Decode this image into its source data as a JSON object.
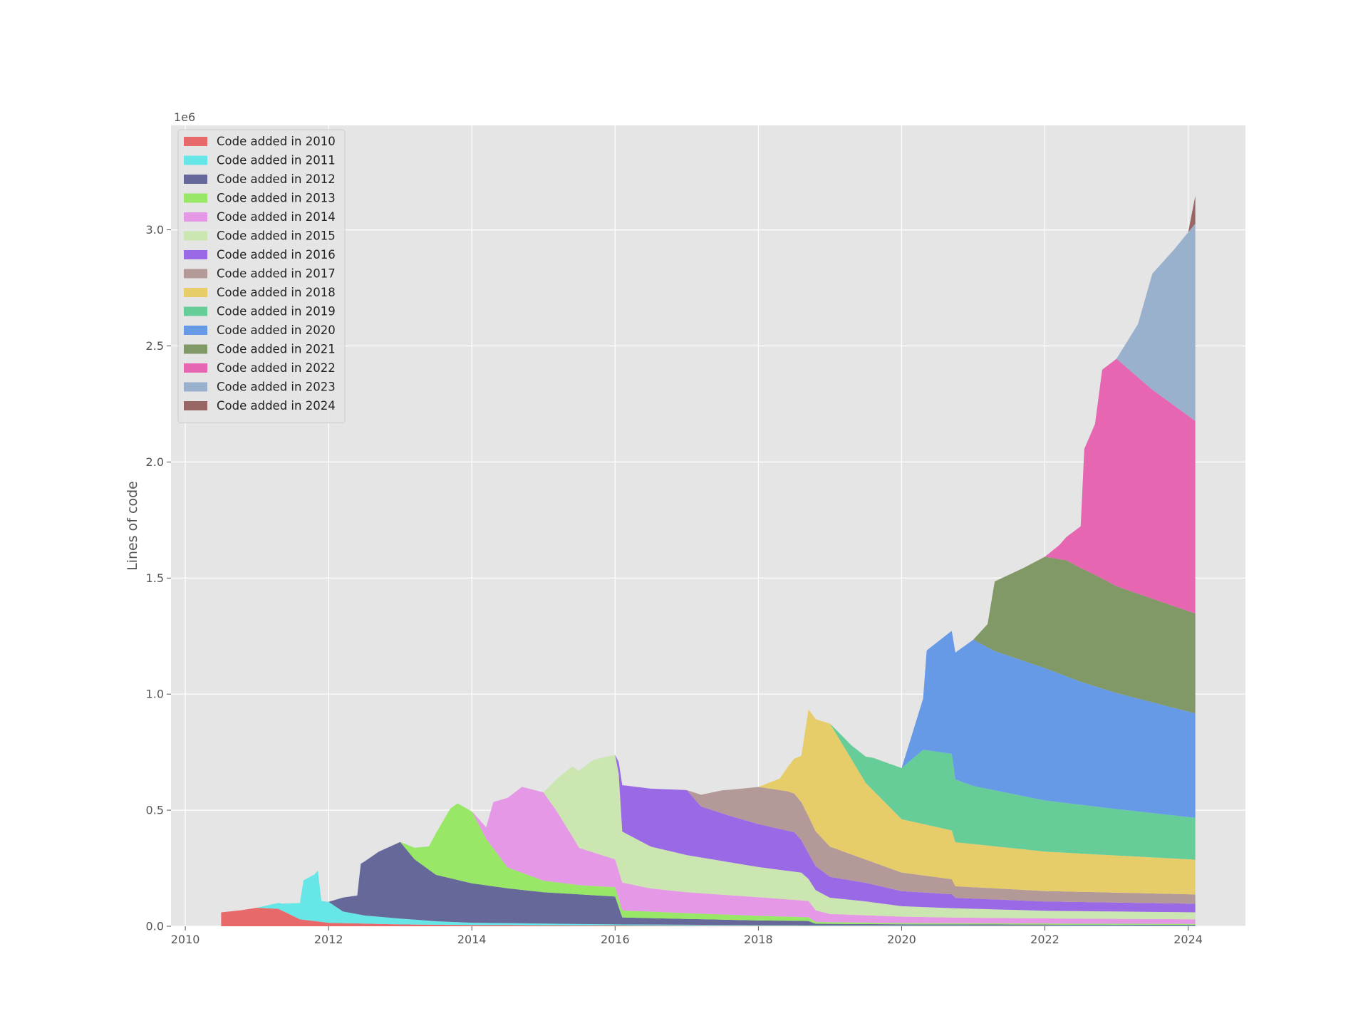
{
  "chart_data": {
    "type": "area",
    "title": "",
    "xlabel": "",
    "ylabel": "Lines of code",
    "y_offset_label": "1e6",
    "xlim": [
      2009.8,
      2024.8
    ],
    "ylim": [
      0,
      3.45
    ],
    "x_ticks": [
      2010,
      2012,
      2014,
      2016,
      2018,
      2020,
      2022,
      2024
    ],
    "x_tick_labels": [
      "2010",
      "2012",
      "2014",
      "2016",
      "2018",
      "2020",
      "2022",
      "2024"
    ],
    "y_ticks": [
      0,
      0.5,
      1.0,
      1.5,
      2.0,
      2.5,
      3.0
    ],
    "y_tick_labels": [
      "0.0",
      "0.5",
      "1.0",
      "1.5",
      "2.0",
      "2.5",
      "3.0"
    ],
    "grid": true,
    "stacked": true,
    "legend_position": "top-left",
    "unit_multiplier": 1000000,
    "series": [
      {
        "name": "Code added in 2010",
        "color": "#e8696a",
        "points": [
          [
            2010.5,
            0.06
          ],
          [
            2010.8,
            0.07
          ],
          [
            2011.0,
            0.08
          ],
          [
            2011.3,
            0.075
          ],
          [
            2011.6,
            0.03
          ],
          [
            2012.0,
            0.015
          ],
          [
            2013.0,
            0.008
          ],
          [
            2014.0,
            0.005
          ],
          [
            2016.0,
            0.003
          ],
          [
            2018.0,
            0.002
          ],
          [
            2024.1,
            0.001
          ]
        ]
      },
      {
        "name": "Code added in 2011",
        "color": "#66e6e6",
        "points": [
          [
            2011.0,
            0.0
          ],
          [
            2011.35,
            0.03
          ],
          [
            2011.6,
            0.07
          ],
          [
            2011.65,
            0.17
          ],
          [
            2011.8,
            0.2
          ],
          [
            2011.85,
            0.22
          ],
          [
            2011.9,
            0.09
          ],
          [
            2012.0,
            0.09
          ],
          [
            2012.2,
            0.05
          ],
          [
            2012.5,
            0.035
          ],
          [
            2013.0,
            0.025
          ],
          [
            2013.5,
            0.015
          ],
          [
            2014.0,
            0.01
          ],
          [
            2016.0,
            0.005
          ],
          [
            2018.0,
            0.003
          ],
          [
            2024.1,
            0.002
          ]
        ]
      },
      {
        "name": "Code added in 2012",
        "color": "#66689a",
        "points": [
          [
            2012.0,
            0.0
          ],
          [
            2012.2,
            0.06
          ],
          [
            2012.4,
            0.08
          ],
          [
            2012.45,
            0.22
          ],
          [
            2012.7,
            0.28
          ],
          [
            2013.0,
            0.33
          ],
          [
            2013.2,
            0.26
          ],
          [
            2013.5,
            0.2
          ],
          [
            2014.0,
            0.17
          ],
          [
            2014.5,
            0.15
          ],
          [
            2015.0,
            0.135
          ],
          [
            2016.0,
            0.12
          ],
          [
            2016.1,
            0.03
          ],
          [
            2017.0,
            0.025
          ],
          [
            2018.0,
            0.02
          ],
          [
            2018.7,
            0.018
          ],
          [
            2018.8,
            0.006
          ],
          [
            2020.0,
            0.004
          ],
          [
            2024.1,
            0.003
          ]
        ]
      },
      {
        "name": "Code added in 2013",
        "color": "#98e766",
        "points": [
          [
            2013.0,
            0.0
          ],
          [
            2013.2,
            0.05
          ],
          [
            2013.4,
            0.1
          ],
          [
            2013.5,
            0.18
          ],
          [
            2013.7,
            0.3
          ],
          [
            2013.8,
            0.33
          ],
          [
            2014.0,
            0.31
          ],
          [
            2014.2,
            0.2
          ],
          [
            2014.5,
            0.09
          ],
          [
            2015.0,
            0.05
          ],
          [
            2015.5,
            0.04
          ],
          [
            2016.0,
            0.04
          ],
          [
            2016.1,
            0.03
          ],
          [
            2017.0,
            0.025
          ],
          [
            2018.0,
            0.02
          ],
          [
            2018.7,
            0.016
          ],
          [
            2018.8,
            0.008
          ],
          [
            2020.0,
            0.005
          ],
          [
            2024.1,
            0.004
          ]
        ]
      },
      {
        "name": "Code added in 2014",
        "color": "#e598e6",
        "points": [
          [
            2014.0,
            0.0
          ],
          [
            2014.2,
            0.05
          ],
          [
            2014.3,
            0.2
          ],
          [
            2014.5,
            0.3
          ],
          [
            2014.7,
            0.37
          ],
          [
            2015.0,
            0.38
          ],
          [
            2015.2,
            0.3
          ],
          [
            2015.5,
            0.16
          ],
          [
            2016.0,
            0.12
          ],
          [
            2016.1,
            0.12
          ],
          [
            2016.5,
            0.1
          ],
          [
            2017.0,
            0.09
          ],
          [
            2018.0,
            0.08
          ],
          [
            2018.7,
            0.07
          ],
          [
            2018.8,
            0.05
          ],
          [
            2019.0,
            0.035
          ],
          [
            2020.0,
            0.028
          ],
          [
            2020.7,
            0.025
          ],
          [
            2022.0,
            0.022
          ],
          [
            2024.1,
            0.02
          ]
        ]
      },
      {
        "name": "Code added in 2015",
        "color": "#cce6b1",
        "points": [
          [
            2015.0,
            0.0
          ],
          [
            2015.2,
            0.15
          ],
          [
            2015.4,
            0.3
          ],
          [
            2015.7,
            0.4
          ],
          [
            2016.0,
            0.45
          ],
          [
            2016.05,
            0.42
          ],
          [
            2016.1,
            0.22
          ],
          [
            2016.5,
            0.18
          ],
          [
            2017.0,
            0.16
          ],
          [
            2018.0,
            0.13
          ],
          [
            2018.6,
            0.12
          ],
          [
            2018.7,
            0.095
          ],
          [
            2019.0,
            0.07
          ],
          [
            2019.5,
            0.06
          ],
          [
            2020.0,
            0.045
          ],
          [
            2020.7,
            0.04
          ],
          [
            2022.0,
            0.033
          ],
          [
            2024.1,
            0.03
          ]
        ]
      },
      {
        "name": "Code added in 2016",
        "color": "#9a69e6",
        "points": [
          [
            2016.0,
            0.0
          ],
          [
            2016.05,
            0.05
          ],
          [
            2016.1,
            0.2
          ],
          [
            2016.5,
            0.25
          ],
          [
            2017.0,
            0.28
          ],
          [
            2017.2,
            0.22
          ],
          [
            2017.6,
            0.2
          ],
          [
            2018.0,
            0.185
          ],
          [
            2018.5,
            0.17
          ],
          [
            2018.7,
            0.11
          ],
          [
            2019.0,
            0.09
          ],
          [
            2019.5,
            0.08
          ],
          [
            2020.0,
            0.065
          ],
          [
            2020.7,
            0.06
          ],
          [
            2020.75,
            0.045
          ],
          [
            2022.0,
            0.04
          ],
          [
            2024.1,
            0.037
          ]
        ]
      },
      {
        "name": "Code added in 2017",
        "color": "#b49999",
        "points": [
          [
            2017.0,
            0.0
          ],
          [
            2017.2,
            0.05
          ],
          [
            2017.5,
            0.1
          ],
          [
            2018.0,
            0.16
          ],
          [
            2018.4,
            0.17
          ],
          [
            2018.7,
            0.16
          ],
          [
            2019.0,
            0.13
          ],
          [
            2019.5,
            0.1
          ],
          [
            2020.0,
            0.08
          ],
          [
            2020.7,
            0.065
          ],
          [
            2020.75,
            0.05
          ],
          [
            2022.0,
            0.045
          ],
          [
            2024.1,
            0.04
          ]
        ]
      },
      {
        "name": "Code added in 2018",
        "color": "#e6cd69",
        "points": [
          [
            2018.0,
            0.0
          ],
          [
            2018.3,
            0.05
          ],
          [
            2018.6,
            0.2
          ],
          [
            2018.7,
            0.46
          ],
          [
            2019.0,
            0.53
          ],
          [
            2019.5,
            0.33
          ],
          [
            2020.0,
            0.23
          ],
          [
            2020.7,
            0.21
          ],
          [
            2020.75,
            0.19
          ],
          [
            2022.0,
            0.17
          ],
          [
            2023.0,
            0.16
          ],
          [
            2024.1,
            0.15
          ]
        ]
      },
      {
        "name": "Code added in 2019",
        "color": "#66cd99",
        "points": [
          [
            2019.0,
            0.0
          ],
          [
            2019.3,
            0.06
          ],
          [
            2019.6,
            0.14
          ],
          [
            2020.0,
            0.22
          ],
          [
            2020.3,
            0.32
          ],
          [
            2020.7,
            0.33
          ],
          [
            2020.75,
            0.27
          ],
          [
            2021.0,
            0.25
          ],
          [
            2022.0,
            0.22
          ],
          [
            2023.0,
            0.2
          ],
          [
            2024.1,
            0.18
          ]
        ]
      },
      {
        "name": "Code added in 2020",
        "color": "#6699e6",
        "points": [
          [
            2020.0,
            0.0
          ],
          [
            2020.3,
            0.22
          ],
          [
            2020.35,
            0.43
          ],
          [
            2020.7,
            0.53
          ],
          [
            2021.0,
            0.63
          ],
          [
            2021.3,
            0.6
          ],
          [
            2022.0,
            0.57
          ],
          [
            2022.5,
            0.53
          ],
          [
            2023.0,
            0.5
          ],
          [
            2024.1,
            0.45
          ]
        ]
      },
      {
        "name": "Code added in 2021",
        "color": "#809966",
        "points": [
          [
            2021.0,
            0.0
          ],
          [
            2021.2,
            0.1
          ],
          [
            2021.3,
            0.3
          ],
          [
            2021.7,
            0.4
          ],
          [
            2022.0,
            0.48
          ],
          [
            2022.3,
            0.5
          ],
          [
            2022.7,
            0.48
          ],
          [
            2023.0,
            0.46
          ],
          [
            2024.1,
            0.43
          ]
        ]
      },
      {
        "name": "Code added in 2022",
        "color": "#e666b1",
        "points": [
          [
            2022.0,
            0.0
          ],
          [
            2022.2,
            0.06
          ],
          [
            2022.5,
            0.18
          ],
          [
            2022.55,
            0.52
          ],
          [
            2022.7,
            0.65
          ],
          [
            2022.8,
            0.9
          ],
          [
            2023.0,
            0.98
          ],
          [
            2023.5,
            0.9
          ],
          [
            2024.1,
            0.83
          ]
        ]
      },
      {
        "name": "Code added in 2023",
        "color": "#99b1cd",
        "points": [
          [
            2023.0,
            0.0
          ],
          [
            2023.3,
            0.23
          ],
          [
            2023.5,
            0.5
          ],
          [
            2023.8,
            0.67
          ],
          [
            2024.1,
            0.85
          ]
        ]
      },
      {
        "name": "Code added in 2024",
        "color": "#996666",
        "points": [
          [
            2024.0,
            0.0
          ],
          [
            2024.05,
            0.06
          ],
          [
            2024.1,
            0.12
          ]
        ]
      }
    ]
  }
}
